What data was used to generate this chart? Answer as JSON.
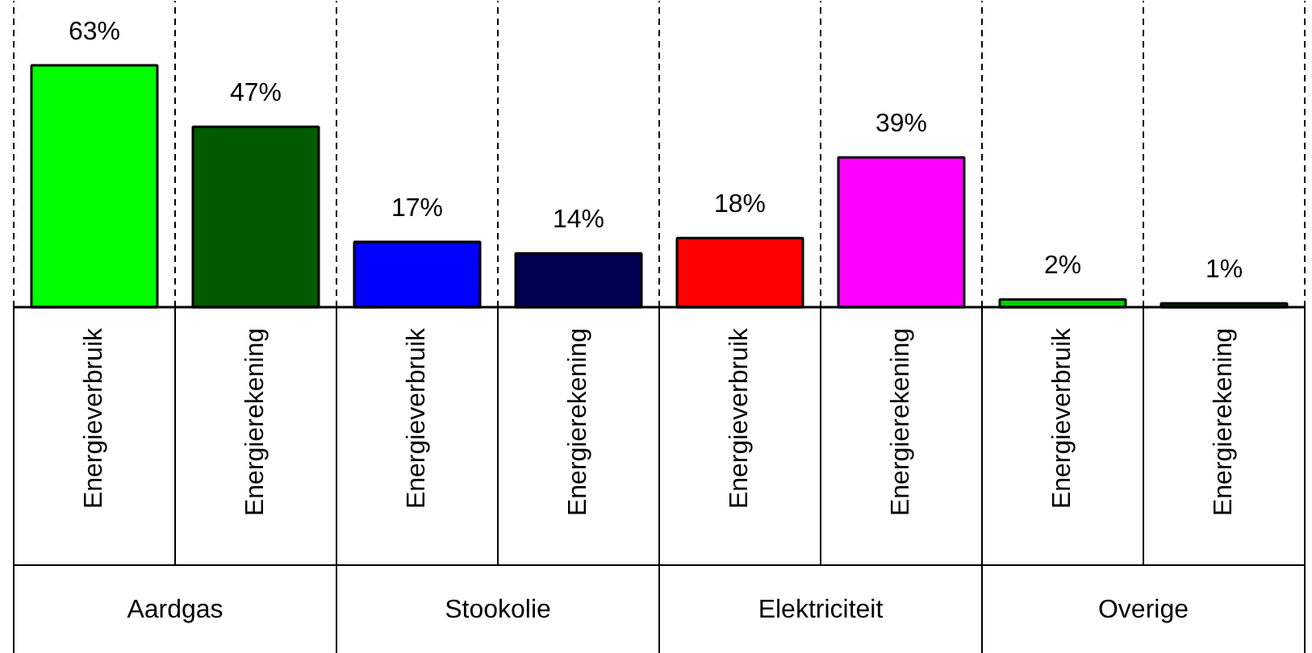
{
  "chart_data": {
    "type": "bar",
    "categories": [
      "Energieverbruik",
      "Energierekening",
      "Energieverbruik",
      "Energierekening",
      "Energieverbruik",
      "Energierekening",
      "Energieverbruik",
      "Energierekening"
    ],
    "values": [
      63,
      47,
      17,
      14,
      18,
      39,
      2,
      1
    ],
    "colors": [
      "#00ff00",
      "#005a00",
      "#0000ff",
      "#000050",
      "#ff0000",
      "#ff00ff",
      "#00d000",
      "#003000"
    ],
    "value_labels": [
      "63%",
      "47%",
      "17%",
      "14%",
      "18%",
      "39%",
      "2%",
      "1%"
    ],
    "annotations": [
      "Aardgas",
      "Stookolie",
      "Elektriciteit",
      "Overige"
    ],
    "grid": "x"
  }
}
